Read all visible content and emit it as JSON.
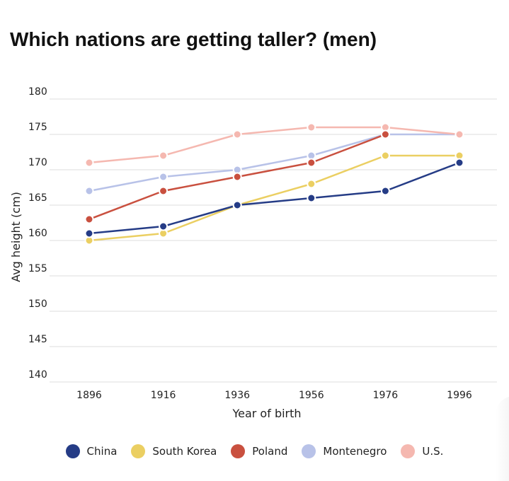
{
  "chart_data": {
    "type": "line",
    "title": "Which nations are getting taller? (men)",
    "xlabel": "Year of birth",
    "ylabel": "Avg height (cm)",
    "categories": [
      "1896",
      "1916",
      "1936",
      "1956",
      "1976",
      "1996"
    ],
    "yticks": [
      "140",
      "145",
      "150",
      "155",
      "160",
      "165",
      "170",
      "175",
      "180"
    ],
    "ylim": [
      140,
      180
    ],
    "grid": "horizontal",
    "legend_position": "bottom",
    "series": [
      {
        "name": "Montenegro",
        "color": "#b8c2e8",
        "values": [
          167,
          169,
          170,
          172,
          175,
          175
        ]
      },
      {
        "name": "U.S.",
        "color": "#f5b8b0",
        "values": [
          171,
          172,
          175,
          176,
          176,
          175
        ]
      },
      {
        "name": "South Korea",
        "color": "#ebcf62",
        "values": [
          160,
          161,
          165,
          168,
          172,
          172
        ]
      },
      {
        "name": "Poland",
        "color": "#c9503f",
        "values": [
          163,
          167,
          169,
          171,
          175,
          null
        ]
      },
      {
        "name": "China",
        "color": "#253c86",
        "values": [
          161,
          162,
          165,
          166,
          167,
          171
        ]
      }
    ],
    "legend_order": [
      "China",
      "South Korea",
      "Poland",
      "Montenegro",
      "U.S."
    ]
  }
}
